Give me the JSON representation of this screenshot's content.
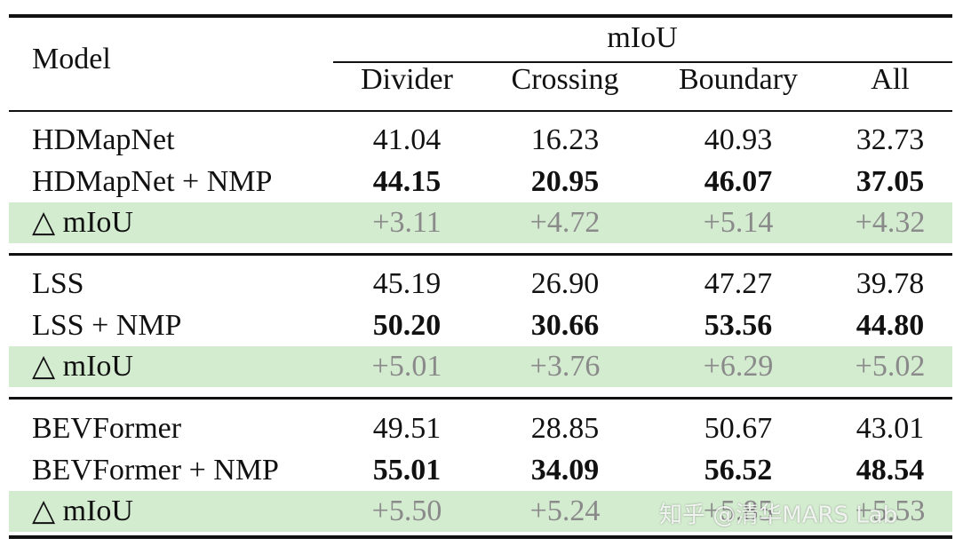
{
  "header": {
    "model": "Model",
    "group": "mIoU",
    "columns": [
      "Divider",
      "Crossing",
      "Boundary",
      "All"
    ]
  },
  "groups": [
    {
      "rows": [
        {
          "model": "HDMapNet",
          "values": [
            "41.04",
            "16.23",
            "40.93",
            "32.73"
          ]
        },
        {
          "model": "HDMapNet + NMP",
          "values": [
            "44.15",
            "20.95",
            "46.07",
            "37.05"
          ]
        },
        {
          "model": "△ mIoU",
          "values": [
            "+3.11",
            "+4.72",
            "+5.14",
            "+4.32"
          ]
        }
      ]
    },
    {
      "rows": [
        {
          "model": "LSS",
          "values": [
            "45.19",
            "26.90",
            "47.27",
            "39.78"
          ]
        },
        {
          "model": "LSS + NMP",
          "values": [
            "50.20",
            "30.66",
            "53.56",
            "44.80"
          ]
        },
        {
          "model": "△ mIoU",
          "values": [
            "+5.01",
            "+3.76",
            "+6.29",
            "+5.02"
          ]
        }
      ]
    },
    {
      "rows": [
        {
          "model": "BEVFormer",
          "values": [
            "49.51",
            "28.85",
            "50.67",
            "43.01"
          ]
        },
        {
          "model": "BEVFormer + NMP",
          "values": [
            "55.01",
            "34.09",
            "56.52",
            "48.54"
          ]
        },
        {
          "model": "△ mIoU",
          "values": [
            "+5.50",
            "+5.24",
            "+5.85",
            "+5.53"
          ]
        }
      ]
    }
  ],
  "watermark": "知乎 @清华MARS Lab"
}
